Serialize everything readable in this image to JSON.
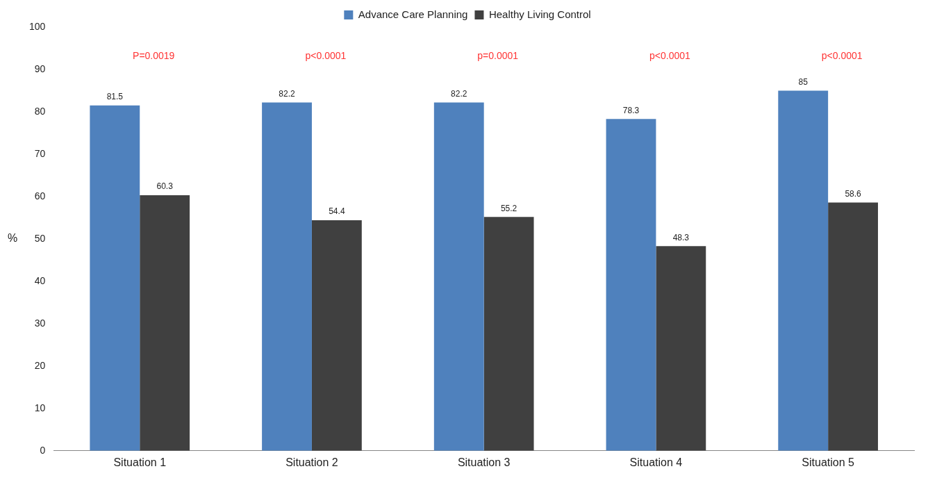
{
  "chart_data": {
    "type": "bar",
    "categories": [
      "Situation 1",
      "Situation 2",
      "Situation 3",
      "Situation 4",
      "Situation 5"
    ],
    "series": [
      {
        "name": "Advance Care Planning",
        "color": "#4f81bd",
        "values": [
          81.5,
          82.2,
          82.2,
          78.3,
          85
        ]
      },
      {
        "name": "Healthy Living Control",
        "color": "#404040",
        "values": [
          60.3,
          54.4,
          55.2,
          48.3,
          58.6
        ]
      }
    ],
    "ylabel": "%",
    "ylim": [
      0,
      100
    ],
    "yticks": [
      0,
      10,
      20,
      30,
      40,
      50,
      60,
      70,
      80,
      90,
      100
    ],
    "grid": false,
    "legend": "top",
    "data_labels": true,
    "annotations": [
      "P=0.0019",
      "p<0.0001",
      "p=0.0001",
      "p<0.0001",
      "p<0.0001"
    ]
  }
}
